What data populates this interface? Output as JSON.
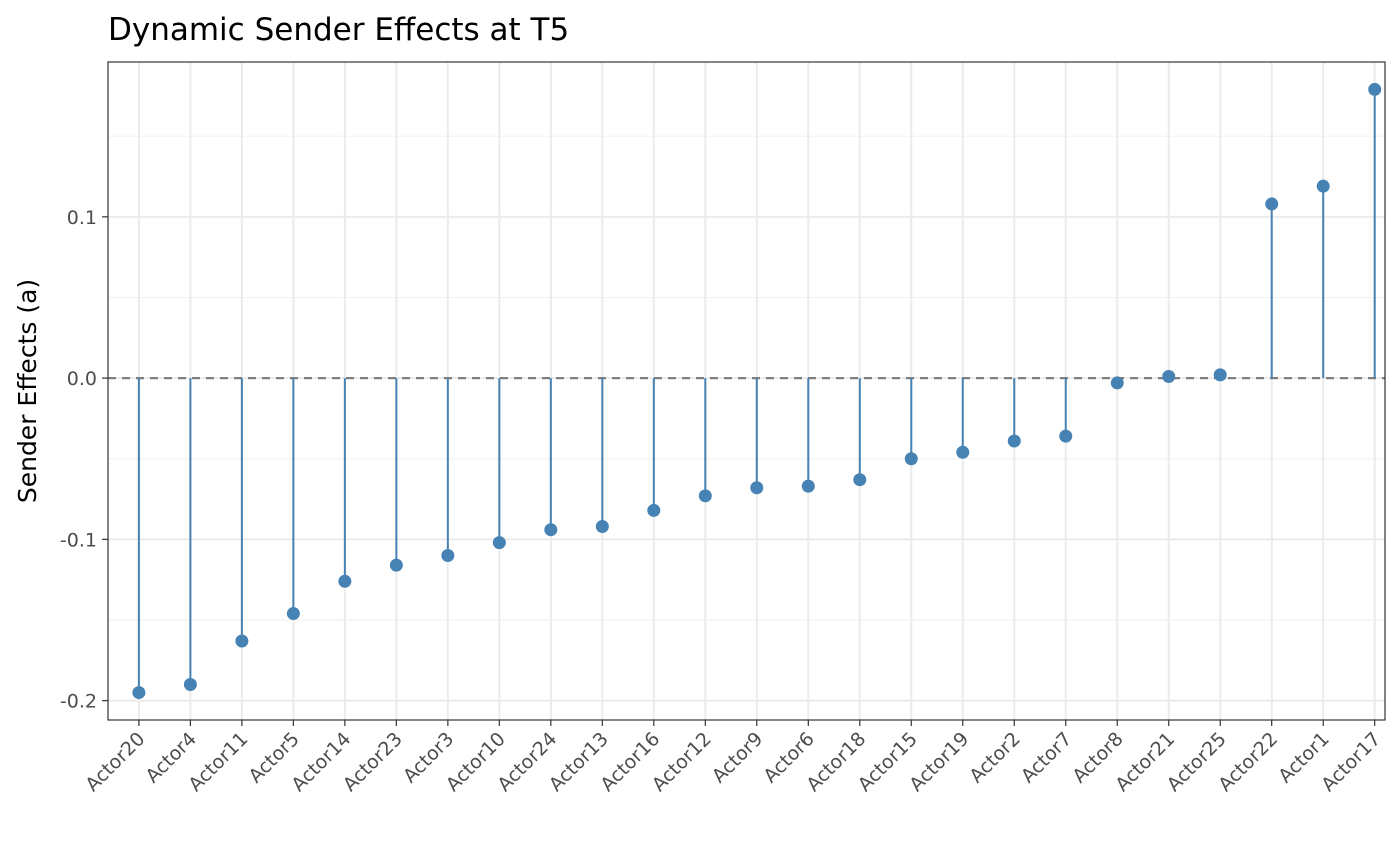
{
  "chart_data": {
    "type": "lollipop",
    "title": "Dynamic Sender Effects at T5",
    "xlabel": "",
    "ylabel": "Sender Effects (a)",
    "ylim": [
      -0.212,
      0.196
    ],
    "yticks": [
      -0.2,
      -0.1,
      0.0,
      0.1
    ],
    "ytick_labels": [
      "-0.2",
      "-0.1",
      "0.0",
      "0.1"
    ],
    "reference_line": {
      "y": 0.0,
      "style": "dashed",
      "color": "#7f7f7f"
    },
    "grid": true,
    "legend": "none",
    "color": "#4682b4",
    "categories": [
      "Actor20",
      "Actor4",
      "Actor11",
      "Actor5",
      "Actor14",
      "Actor23",
      "Actor3",
      "Actor10",
      "Actor24",
      "Actor13",
      "Actor16",
      "Actor12",
      "Actor9",
      "Actor6",
      "Actor18",
      "Actor15",
      "Actor19",
      "Actor2",
      "Actor7",
      "Actor8",
      "Actor21",
      "Actor25",
      "Actor22",
      "Actor1",
      "Actor17"
    ],
    "values": [
      -0.195,
      -0.19,
      -0.163,
      -0.146,
      -0.126,
      -0.116,
      -0.11,
      -0.102,
      -0.094,
      -0.092,
      -0.082,
      -0.073,
      -0.068,
      -0.067,
      -0.063,
      -0.05,
      -0.046,
      -0.039,
      -0.036,
      -0.003,
      0.001,
      0.002,
      0.108,
      0.119,
      0.179
    ]
  }
}
